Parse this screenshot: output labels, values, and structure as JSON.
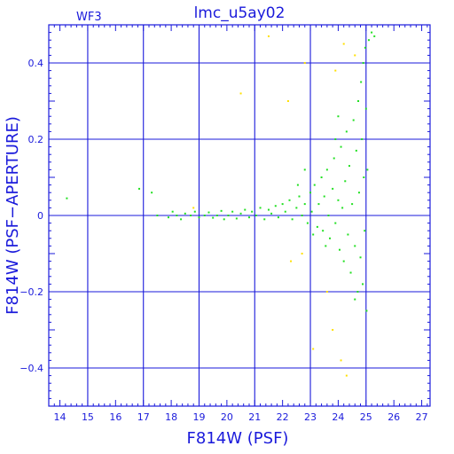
{
  "chart_data": {
    "type": "scatter",
    "title": "lmc_u5ay02",
    "panel_label": "WF3",
    "xlabel": "F814W (PSF)",
    "ylabel": "F814W (PSF−APERTURE)",
    "xlim": [
      13.6,
      27.3
    ],
    "ylim": [
      -0.5,
      0.5
    ],
    "x_ticks": [
      14,
      15,
      16,
      17,
      18,
      19,
      20,
      21,
      22,
      23,
      24,
      25,
      26,
      27
    ],
    "x_tick_labels": [
      "14",
      "15",
      "16",
      "17",
      "18",
      "19",
      "20",
      "21",
      "22",
      "23",
      "24",
      "25",
      "26",
      "27"
    ],
    "y_ticks": [
      -0.4,
      -0.2,
      0,
      0.2,
      0.4
    ],
    "y_tick_labels": [
      "−0.4",
      "−0.2",
      "0",
      "0.2",
      "0.4"
    ],
    "grid_x": [
      15,
      17,
      19,
      21,
      23,
      25
    ],
    "grid_y": [
      -0.4,
      -0.2,
      0,
      0.2,
      0.4
    ],
    "grid": true,
    "colors": {
      "axis": "#1a1adb",
      "grid": "#1a1adb",
      "primary": "#22e022",
      "secondary": "#ffe000"
    },
    "series": [
      {
        "color": "#22e022",
        "points": [
          [
            14.25,
            0.045
          ],
          [
            16.85,
            0.07
          ],
          [
            17.3,
            0.06
          ],
          [
            17.5,
            0.0
          ],
          [
            17.9,
            -0.005
          ],
          [
            18.05,
            0.01
          ],
          [
            18.2,
            0.0
          ],
          [
            18.35,
            -0.01
          ],
          [
            18.5,
            0.005
          ],
          [
            18.7,
            0.0
          ],
          [
            18.85,
            0.01
          ],
          [
            19.0,
            -0.005
          ],
          [
            19.2,
            0.0
          ],
          [
            19.35,
            0.008
          ],
          [
            19.5,
            -0.006
          ],
          [
            19.65,
            0.0
          ],
          [
            19.8,
            0.012
          ],
          [
            19.9,
            -0.01
          ],
          [
            20.05,
            0.0
          ],
          [
            20.2,
            0.01
          ],
          [
            20.35,
            -0.008
          ],
          [
            20.5,
            0.005
          ],
          [
            20.65,
            0.015
          ],
          [
            20.8,
            -0.005
          ],
          [
            20.9,
            0.01
          ],
          [
            21.05,
            0.0
          ],
          [
            21.2,
            0.02
          ],
          [
            21.35,
            -0.01
          ],
          [
            21.5,
            0.015
          ],
          [
            21.6,
            0.005
          ],
          [
            21.75,
            0.025
          ],
          [
            21.85,
            -0.005
          ],
          [
            22.0,
            0.03
          ],
          [
            22.1,
            0.01
          ],
          [
            22.25,
            0.04
          ],
          [
            22.35,
            -0.01
          ],
          [
            22.5,
            0.02
          ],
          [
            22.6,
            0.05
          ],
          [
            22.7,
            0.0
          ],
          [
            22.8,
            0.03
          ],
          [
            22.9,
            -0.02
          ],
          [
            23.0,
            0.06
          ],
          [
            23.05,
            0.01
          ],
          [
            23.15,
            0.08
          ],
          [
            23.25,
            -0.03
          ],
          [
            23.3,
            0.03
          ],
          [
            23.4,
            0.1
          ],
          [
            23.45,
            -0.04
          ],
          [
            23.5,
            0.05
          ],
          [
            23.6,
            0.12
          ],
          [
            23.65,
            0.0
          ],
          [
            23.7,
            -0.06
          ],
          [
            23.8,
            0.07
          ],
          [
            23.85,
            0.15
          ],
          [
            23.9,
            -0.02
          ],
          [
            24.0,
            0.04
          ],
          [
            24.05,
            -0.09
          ],
          [
            24.1,
            0.18
          ],
          [
            24.15,
            0.02
          ],
          [
            24.2,
            -0.12
          ],
          [
            24.25,
            0.09
          ],
          [
            24.3,
            0.22
          ],
          [
            24.35,
            -0.05
          ],
          [
            24.4,
            0.13
          ],
          [
            24.45,
            -0.15
          ],
          [
            24.5,
            0.03
          ],
          [
            24.55,
            0.25
          ],
          [
            24.6,
            -0.08
          ],
          [
            24.65,
            0.17
          ],
          [
            24.7,
            -0.2
          ],
          [
            24.72,
            0.3
          ],
          [
            24.75,
            0.06
          ],
          [
            24.8,
            -0.11
          ],
          [
            24.82,
            0.35
          ],
          [
            24.85,
            0.2
          ],
          [
            24.88,
            -0.18
          ],
          [
            24.9,
            0.4
          ],
          [
            24.92,
            0.1
          ],
          [
            24.95,
            -0.04
          ],
          [
            24.97,
            0.44
          ],
          [
            25.0,
            0.28
          ],
          [
            25.02,
            -0.25
          ],
          [
            25.05,
            0.12
          ],
          [
            25.1,
            0.46
          ],
          [
            25.2,
            0.48
          ],
          [
            25.3,
            0.47
          ],
          [
            22.55,
            0.08
          ],
          [
            23.1,
            -0.05
          ],
          [
            23.55,
            -0.08
          ],
          [
            24.6,
            -0.22
          ],
          [
            24.0,
            0.26
          ],
          [
            23.9,
            0.2
          ],
          [
            22.8,
            0.12
          ]
        ]
      },
      {
        "color": "#ffe000",
        "points": [
          [
            21.5,
            0.47
          ],
          [
            22.8,
            0.4
          ],
          [
            23.9,
            0.38
          ],
          [
            24.2,
            0.45
          ],
          [
            24.6,
            0.42
          ],
          [
            20.5,
            0.32
          ],
          [
            22.2,
            0.3
          ],
          [
            18.8,
            0.02
          ],
          [
            22.7,
            -0.1
          ],
          [
            23.6,
            -0.2
          ],
          [
            23.1,
            -0.35
          ],
          [
            24.1,
            -0.38
          ],
          [
            24.3,
            -0.42
          ],
          [
            22.3,
            -0.12
          ],
          [
            23.8,
            -0.3
          ]
        ]
      }
    ]
  }
}
